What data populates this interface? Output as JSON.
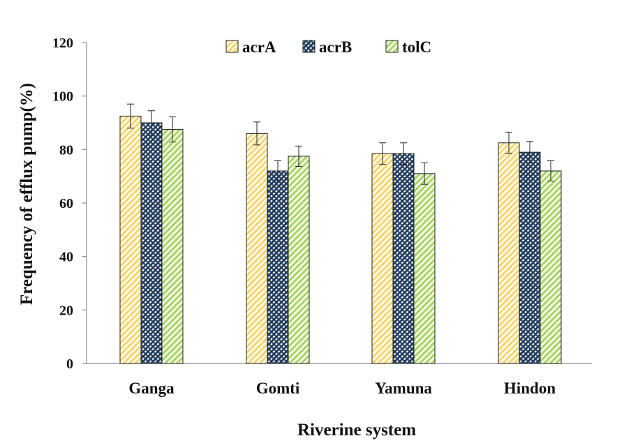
{
  "chart_data": {
    "type": "bar",
    "title": "",
    "xlabel": "Riverine system",
    "ylabel": "Frequency of efflux pump(%)",
    "categories": [
      "Ganga",
      "Gomti",
      "Yamuna",
      "Hindon"
    ],
    "ylim": [
      0,
      120
    ],
    "yticks": [
      "0",
      "20",
      "40",
      "60",
      "80",
      "100",
      "120"
    ],
    "grid": false,
    "legend_position": "top",
    "series": [
      {
        "name": "acrA",
        "values": [
          92.5,
          86.0,
          78.5,
          82.5
        ],
        "errors": [
          4.5,
          4.3,
          4.0,
          4.0
        ],
        "color": "#ffe08a",
        "pattern": "diagonal-hatch"
      },
      {
        "name": "acrB",
        "values": [
          90.0,
          72.0,
          78.5,
          79.0
        ],
        "errors": [
          4.5,
          3.8,
          4.0,
          4.0
        ],
        "color": "#1f3a5a",
        "pattern": "crosshatch"
      },
      {
        "name": "tolC",
        "values": [
          87.5,
          77.5,
          71.0,
          72.0
        ],
        "errors": [
          4.7,
          3.8,
          4.0,
          3.8
        ],
        "color": "#c8e68c",
        "pattern": "diagonal-hatch"
      }
    ]
  }
}
